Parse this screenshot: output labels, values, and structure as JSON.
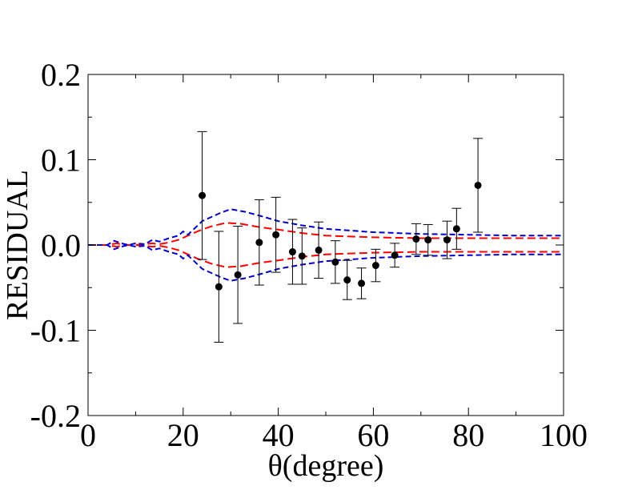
{
  "chart_data": {
    "type": "scatter",
    "title": "",
    "xlabel": "θ(degree)",
    "ylabel": "RESIDUAL",
    "xlim": [
      0,
      100
    ],
    "ylim": [
      -0.2,
      0.2
    ],
    "x_ticks": [
      0,
      20,
      40,
      60,
      80,
      100
    ],
    "x_tick_labels": [
      "0",
      "20",
      "40",
      "60",
      "80",
      "100"
    ],
    "y_ticks": [
      -0.2,
      -0.1,
      0.0,
      0.1,
      0.2
    ],
    "y_tick_labels": [
      "-0.2",
      "-0.1",
      "0.0",
      "0.1",
      "0.2"
    ],
    "points": {
      "name": "data",
      "color": "#000000",
      "x": [
        24.0,
        27.5,
        31.5,
        36.0,
        39.5,
        43.0,
        45.0,
        48.5,
        52.0,
        54.5,
        57.5,
        60.5,
        64.5,
        69.0,
        71.5,
        75.5,
        77.5,
        82.0
      ],
      "y": [
        0.058,
        -0.049,
        -0.035,
        0.003,
        0.012,
        -0.008,
        -0.013,
        -0.006,
        -0.02,
        -0.041,
        -0.045,
        -0.024,
        -0.012,
        0.007,
        0.006,
        0.006,
        0.019,
        0.07
      ],
      "err": [
        0.075,
        0.065,
        0.057,
        0.05,
        0.044,
        0.038,
        0.033,
        0.033,
        0.025,
        0.023,
        0.018,
        0.019,
        0.014,
        0.018,
        0.018,
        0.022,
        0.024,
        0.055
      ]
    },
    "series": [
      {
        "name": "red-upper",
        "color": "#ff0000",
        "style": "dashed",
        "x": [
          0,
          4,
          6,
          8,
          10,
          12,
          13.5,
          15,
          17,
          19,
          21,
          23,
          26,
          29,
          32,
          36,
          40,
          45,
          50,
          55,
          60,
          70,
          80,
          90,
          100
        ],
        "y": [
          0,
          0,
          0.002,
          0,
          0,
          0.001,
          0.002,
          0.001,
          0.003,
          0.006,
          0.011,
          0.016,
          0.022,
          0.026,
          0.025,
          0.021,
          0.018,
          0.014,
          0.011,
          0.01,
          0.009,
          0.008,
          0.008,
          0.008,
          0.008
        ]
      },
      {
        "name": "red-lower",
        "color": "#ff0000",
        "style": "dashed",
        "x": [
          0,
          4,
          6,
          8,
          10,
          12,
          13.5,
          15,
          17,
          19,
          21,
          23,
          26,
          29,
          32,
          36,
          40,
          45,
          50,
          55,
          60,
          70,
          80,
          90,
          100
        ],
        "y": [
          0,
          0,
          -0.002,
          0,
          0,
          -0.001,
          -0.002,
          -0.001,
          -0.003,
          -0.006,
          -0.011,
          -0.016,
          -0.022,
          -0.026,
          -0.025,
          -0.021,
          -0.018,
          -0.014,
          -0.011,
          -0.01,
          -0.009,
          -0.008,
          -0.008,
          -0.008,
          -0.008
        ]
      },
      {
        "name": "blue-upper",
        "color": "#0000cc",
        "style": "dashed",
        "x": [
          0,
          4,
          5.5,
          7,
          8.5,
          10,
          12,
          13.5,
          15,
          17,
          19,
          20,
          21,
          22.5,
          24,
          26,
          28,
          30,
          33,
          37,
          40,
          45,
          50,
          55,
          60,
          70,
          80,
          90,
          100
        ],
        "y": [
          0,
          0,
          0.005,
          0.002,
          0,
          0.002,
          0.001,
          0.006,
          0.004,
          0.008,
          0.011,
          0.016,
          0.012,
          0.02,
          0.028,
          0.033,
          0.038,
          0.042,
          0.039,
          0.033,
          0.028,
          0.023,
          0.019,
          0.017,
          0.015,
          0.013,
          0.012,
          0.011,
          0.011
        ]
      },
      {
        "name": "blue-lower",
        "color": "#0000cc",
        "style": "dashed",
        "x": [
          0,
          4,
          5.5,
          7,
          8.5,
          10,
          12,
          13.5,
          15,
          17,
          19,
          20,
          21,
          22.5,
          24,
          26,
          28,
          30,
          33,
          37,
          40,
          45,
          50,
          55,
          60,
          70,
          80,
          90,
          100
        ],
        "y": [
          0,
          0,
          -0.005,
          -0.002,
          0,
          -0.002,
          -0.001,
          -0.006,
          -0.004,
          -0.008,
          -0.011,
          -0.016,
          -0.012,
          -0.02,
          -0.028,
          -0.033,
          -0.038,
          -0.042,
          -0.039,
          -0.033,
          -0.028,
          -0.023,
          -0.019,
          -0.017,
          -0.015,
          -0.013,
          -0.012,
          -0.011,
          -0.011
        ]
      }
    ]
  }
}
